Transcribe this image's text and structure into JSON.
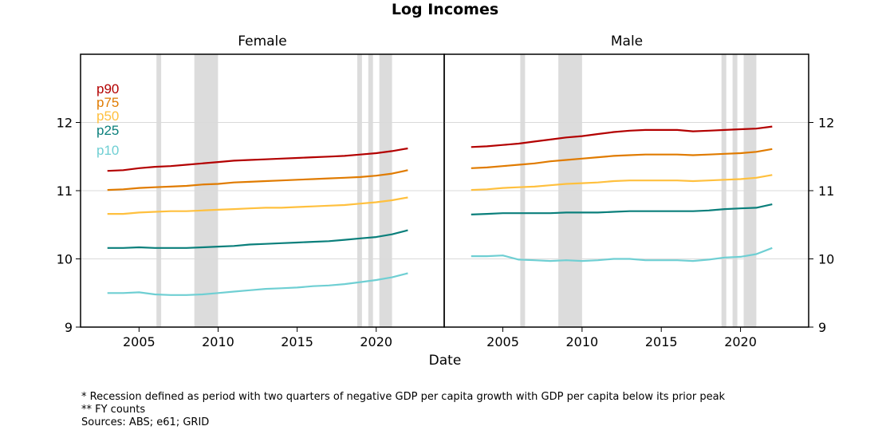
{
  "chart_data": {
    "type": "line",
    "title": "Log Incomes",
    "xlabel": "Date",
    "ylabel": "",
    "xlim": [
      2001.3,
      2024.3
    ],
    "ylim": [
      9,
      13
    ],
    "x_ticks": [
      2005,
      2010,
      2015,
      2020
    ],
    "y_ticks": [
      9,
      10,
      11,
      12
    ],
    "grid": "horizontal",
    "legend_placement": "top-left of first panel",
    "recession_bands": [
      [
        2006.1,
        2006.4
      ],
      [
        2008.5,
        2010.0
      ],
      [
        2018.8,
        2019.1
      ],
      [
        2019.5,
        2019.8
      ],
      [
        2020.2,
        2021.0
      ]
    ],
    "series_colors": {
      "p90": "#b30000",
      "p75": "#e07b00",
      "p50": "#ffc03e",
      "p25": "#0a7f7b",
      "p10": "#6fcfd3"
    },
    "legend_order": [
      "p90",
      "p75",
      "p50",
      "p25",
      "p10"
    ],
    "panels": [
      {
        "label": "Female",
        "x": [
          2003,
          2004,
          2005,
          2006,
          2007,
          2008,
          2009,
          2010,
          2011,
          2012,
          2013,
          2014,
          2015,
          2016,
          2017,
          2018,
          2019,
          2020,
          2021,
          2022
        ],
        "series": [
          {
            "name": "p90",
            "values": [
              11.29,
              11.3,
              11.33,
              11.35,
              11.36,
              11.38,
              11.4,
              11.42,
              11.44,
              11.45,
              11.46,
              11.47,
              11.48,
              11.49,
              11.5,
              11.51,
              11.53,
              11.55,
              11.58,
              11.62
            ]
          },
          {
            "name": "p75",
            "values": [
              11.01,
              11.02,
              11.04,
              11.05,
              11.06,
              11.07,
              11.09,
              11.1,
              11.12,
              11.13,
              11.14,
              11.15,
              11.16,
              11.17,
              11.18,
              11.19,
              11.2,
              11.22,
              11.25,
              11.3
            ]
          },
          {
            "name": "p50",
            "values": [
              10.66,
              10.66,
              10.68,
              10.69,
              10.7,
              10.7,
              10.71,
              10.72,
              10.73,
              10.74,
              10.75,
              10.75,
              10.76,
              10.77,
              10.78,
              10.79,
              10.81,
              10.83,
              10.86,
              10.9
            ]
          },
          {
            "name": "p25",
            "values": [
              10.16,
              10.16,
              10.17,
              10.16,
              10.16,
              10.16,
              10.17,
              10.18,
              10.19,
              10.21,
              10.22,
              10.23,
              10.24,
              10.25,
              10.26,
              10.28,
              10.3,
              10.32,
              10.36,
              10.42
            ]
          },
          {
            "name": "p10",
            "values": [
              9.5,
              9.5,
              9.51,
              9.48,
              9.47,
              9.47,
              9.48,
              9.5,
              9.52,
              9.54,
              9.56,
              9.57,
              9.58,
              9.6,
              9.61,
              9.63,
              9.66,
              9.69,
              9.73,
              9.79
            ]
          }
        ]
      },
      {
        "label": "Male",
        "x": [
          2003,
          2004,
          2005,
          2006,
          2007,
          2008,
          2009,
          2010,
          2011,
          2012,
          2013,
          2014,
          2015,
          2016,
          2017,
          2018,
          2019,
          2020,
          2021,
          2022
        ],
        "series": [
          {
            "name": "p90",
            "values": [
              11.64,
              11.65,
              11.67,
              11.69,
              11.72,
              11.75,
              11.78,
              11.8,
              11.83,
              11.86,
              11.88,
              11.89,
              11.89,
              11.89,
              11.87,
              11.88,
              11.89,
              11.9,
              11.91,
              11.94
            ]
          },
          {
            "name": "p75",
            "values": [
              11.33,
              11.34,
              11.36,
              11.38,
              11.4,
              11.43,
              11.45,
              11.47,
              11.49,
              11.51,
              11.52,
              11.53,
              11.53,
              11.53,
              11.52,
              11.53,
              11.54,
              11.55,
              11.57,
              11.61
            ]
          },
          {
            "name": "p50",
            "values": [
              11.01,
              11.02,
              11.04,
              11.05,
              11.06,
              11.08,
              11.1,
              11.11,
              11.12,
              11.14,
              11.15,
              11.15,
              11.15,
              11.15,
              11.14,
              11.15,
              11.16,
              11.17,
              11.19,
              11.23
            ]
          },
          {
            "name": "p25",
            "values": [
              10.65,
              10.66,
              10.67,
              10.67,
              10.67,
              10.67,
              10.68,
              10.68,
              10.68,
              10.69,
              10.7,
              10.7,
              10.7,
              10.7,
              10.7,
              10.71,
              10.73,
              10.74,
              10.75,
              10.8
            ]
          },
          {
            "name": "p10",
            "values": [
              10.04,
              10.04,
              10.05,
              9.99,
              9.98,
              9.97,
              9.98,
              9.97,
              9.98,
              10.0,
              10.0,
              9.98,
              9.98,
              9.98,
              9.97,
              9.99,
              10.02,
              10.03,
              10.07,
              10.16
            ]
          }
        ]
      }
    ]
  },
  "notes": [
    "* Recession defined as period with two quarters of negative GDP per capita growth with GDP per capita below its prior peak",
    "** FY counts",
    "Sources: ABS; e61; GRID"
  ]
}
